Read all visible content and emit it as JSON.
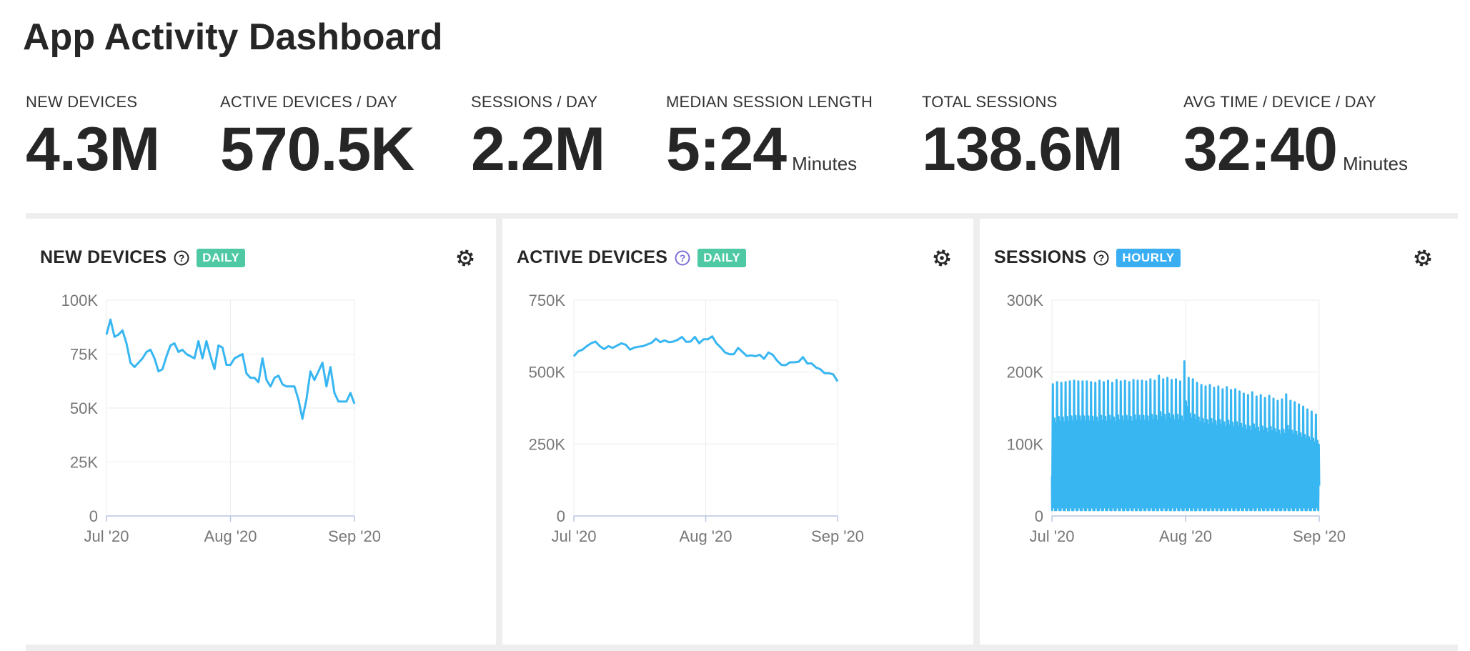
{
  "title": "App Activity Dashboard",
  "kpis": [
    {
      "label": "NEW DEVICES",
      "value": "4.3M",
      "unit": ""
    },
    {
      "label": "ACTIVE DEVICES / DAY",
      "value": "570.5K",
      "unit": ""
    },
    {
      "label": "SESSIONS / DAY",
      "value": "2.2M",
      "unit": ""
    },
    {
      "label": "MEDIAN SESSION LENGTH",
      "value": "5:24",
      "unit": "Minutes"
    },
    {
      "label": "TOTAL SESSIONS",
      "value": "138.6M",
      "unit": ""
    },
    {
      "label": "AVG TIME / DEVICE / DAY",
      "value": "32:40",
      "unit": "Minutes"
    }
  ],
  "colors": {
    "line": "#38b6f1",
    "badge_green": "#4fc9a4",
    "badge_blue": "#3aaef2",
    "help_purple": "#7b6fd6"
  },
  "panels": [
    {
      "title": "NEW DEVICES",
      "badge": "DAILY",
      "badge_color": "#4fc9a4",
      "help_icon": "question-circle-icon",
      "help_color": "#262626",
      "settings_icon": "gear-icon"
    },
    {
      "title": "ACTIVE DEVICES",
      "badge": "DAILY",
      "badge_color": "#4fc9a4",
      "help_icon": "question-circle-icon",
      "help_color": "#7b6fd6",
      "settings_icon": "gear-icon"
    },
    {
      "title": "SESSIONS",
      "badge": "HOURLY",
      "badge_color": "#3aaef2",
      "help_icon": "question-circle-icon",
      "help_color": "#262626",
      "settings_icon": "gear-icon"
    }
  ],
  "chart_data": [
    {
      "type": "line",
      "title": "NEW DEVICES",
      "xlabel": "",
      "ylabel": "",
      "x_ticks": [
        "Jul '20",
        "Aug '20",
        "Sep '20"
      ],
      "y_ticks": [
        "0",
        "25K",
        "50K",
        "75K",
        "100K"
      ],
      "ylim": [
        0,
        100000
      ],
      "x_start": "2020-07-01",
      "x_end": "2020-09-01",
      "grid": true,
      "series": [
        {
          "values": [
            84000,
            91000,
            83000,
            84000,
            86000,
            80000,
            71000,
            69000,
            71000,
            73000,
            76000,
            77000,
            73000,
            67000,
            68000,
            74000,
            79000,
            80000,
            76000,
            77000,
            75000,
            74000,
            73000,
            81000,
            73000,
            81000,
            74000,
            68000,
            79000,
            78000,
            70000,
            70000,
            73000,
            74000,
            75000,
            66000,
            64000,
            64000,
            62000,
            73000,
            63000,
            60000,
            64000,
            65000,
            61000,
            60000,
            60000,
            60000,
            54000,
            45000,
            54000,
            67000,
            63000,
            67000,
            71000,
            60000,
            69000,
            57000,
            53000,
            53000,
            53000,
            57000,
            52000
          ]
        }
      ]
    },
    {
      "type": "line",
      "title": "ACTIVE DEVICES",
      "xlabel": "",
      "ylabel": "",
      "x_ticks": [
        "Jul '20",
        "Aug '20",
        "Sep '20"
      ],
      "y_ticks": [
        "0",
        "250K",
        "500K",
        "750K"
      ],
      "ylim": [
        0,
        750000
      ],
      "x_start": "2020-07-01",
      "x_end": "2020-09-01",
      "grid": true,
      "series": [
        {
          "values": [
            555000,
            572000,
            578000,
            590000,
            600000,
            606000,
            590000,
            580000,
            590000,
            584000,
            592000,
            600000,
            595000,
            578000,
            585000,
            588000,
            590000,
            596000,
            602000,
            616000,
            604000,
            610000,
            604000,
            606000,
            612000,
            622000,
            605000,
            606000,
            622000,
            600000,
            614000,
            614000,
            624000,
            600000,
            585000,
            568000,
            562000,
            562000,
            584000,
            570000,
            556000,
            558000,
            555000,
            560000,
            546000,
            568000,
            560000,
            540000,
            525000,
            524000,
            534000,
            534000,
            536000,
            552000,
            530000,
            530000,
            516000,
            510000,
            496000,
            496000,
            492000,
            468000
          ]
        }
      ]
    },
    {
      "type": "line",
      "title": "SESSIONS",
      "xlabel": "",
      "ylabel": "",
      "x_ticks": [
        "Jul '20",
        "Aug '20",
        "Sep '20"
      ],
      "y_ticks": [
        "0",
        "100K",
        "200K",
        "300K"
      ],
      "ylim": [
        0,
        300000
      ],
      "x_start": "2020-07-01",
      "x_end": "2020-09-01",
      "grid": true,
      "series": [
        {
          "name": "",
          "daily_peaks": [
            183000,
            186000,
            185000,
            186000,
            187000,
            188000,
            187000,
            187000,
            187000,
            186000,
            185000,
            188000,
            186000,
            188000,
            185000,
            189000,
            187000,
            188000,
            186000,
            189000,
            188000,
            188000,
            187000,
            190000,
            188000,
            195000,
            190000,
            192000,
            189000,
            190000,
            187000,
            215000,
            192000,
            190000,
            185000,
            182000,
            180000,
            182000,
            178000,
            180000,
            176000,
            179000,
            175000,
            176000,
            173000,
            170000,
            168000,
            172000,
            166000,
            168000,
            164000,
            167000,
            163000,
            160000,
            162000,
            169000,
            160000,
            158000,
            155000,
            152000,
            148000,
            145000,
            141000
          ],
          "daily_min": 8000
        }
      ]
    }
  ]
}
